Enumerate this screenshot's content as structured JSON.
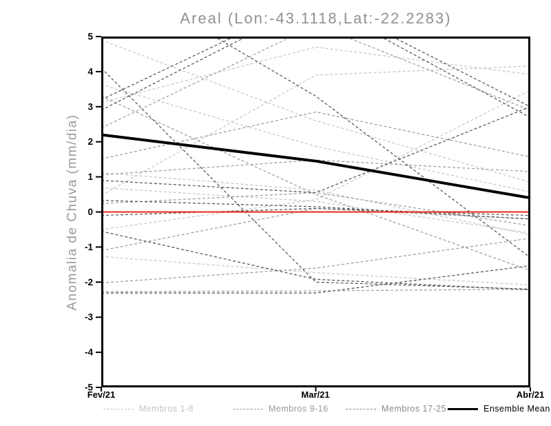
{
  "chart_data": {
    "type": "line",
    "title": "Areal (Lon:-43.1118,Lat:-22.2283)",
    "ylabel": "Anomalia de Chuva (mm/dia)",
    "x_labels": [
      "Fev/21",
      "Mar/21",
      "Abr/21"
    ],
    "ylim": [
      -5,
      5
    ],
    "y_ticks": [
      5,
      4,
      3,
      2,
      1,
      0,
      -1,
      -2,
      -3,
      -4,
      -5
    ],
    "grid": false,
    "zero_line": {
      "value": 0,
      "color": "#e8261f"
    },
    "groups": [
      {
        "name": "Membros 1-8",
        "color": "#c8c8c8",
        "style": "dashed",
        "members": [
          [
            4.9,
            2.6,
            0.85
          ],
          [
            3.63,
            1.87,
            0.57
          ],
          [
            3.12,
            4.7,
            3.92
          ],
          [
            1.12,
            0.62,
            -0.65
          ],
          [
            0.69,
            0.3,
            -0.6
          ],
          [
            0.47,
            3.9,
            4.16
          ],
          [
            -1.27,
            -1.73,
            -2.08
          ],
          [
            -0.5,
            0.35,
            3.47
          ]
        ]
      },
      {
        "name": "Membros 9-16",
        "color": "#a0a0a0",
        "style": "dashed",
        "members": [
          [
            2.39,
            5.33,
            2.9
          ],
          [
            1.51,
            2.85,
            1.57
          ],
          [
            0.24,
            0.55,
            -0.39
          ],
          [
            -1.1,
            0.1,
            -0.2
          ],
          [
            -2.02,
            -1.6,
            -0.75
          ],
          [
            3.3,
            0.5,
            -1.67
          ],
          [
            1.06,
            1.48,
            1.15
          ],
          [
            -2.27,
            -2.25,
            -2.2
          ]
        ]
      },
      {
        "name": "Membros 17-25",
        "color": "#585858",
        "style": "dashed",
        "members": [
          [
            4.1,
            -2.0,
            -2.2
          ],
          [
            6.9,
            3.3,
            -1.3
          ],
          [
            0.33,
            0.15,
            -0.2
          ],
          [
            -0.1,
            0.1,
            -0.1
          ],
          [
            -0.55,
            -1.92,
            -2.22
          ],
          [
            0.9,
            0.55,
            3.0
          ],
          [
            3.2,
            6.1,
            3.0
          ],
          [
            2.9,
            6.0,
            2.69
          ],
          [
            -2.31,
            -2.31,
            -1.53
          ]
        ]
      }
    ],
    "ensemble_mean": {
      "name": "Ensemble Mean",
      "color": "#000000",
      "values": [
        2.2,
        1.45,
        0.4
      ]
    },
    "legend": [
      {
        "label": "Membros 1-8",
        "color": "#c4c4c4",
        "style": "dashed"
      },
      {
        "label": "Membros 9-16",
        "color": "#9a9a9a",
        "style": "dashed"
      },
      {
        "label": "Membros 17-25",
        "color": "#8a8a8a",
        "style": "dashed"
      },
      {
        "label": "Ensemble Mean",
        "color": "#000000",
        "style": "solid"
      }
    ]
  }
}
